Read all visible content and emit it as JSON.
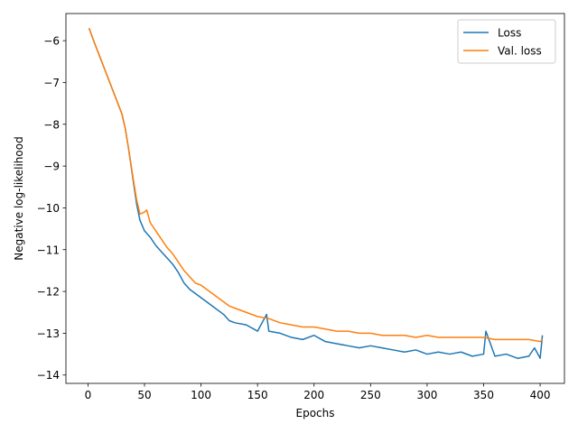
{
  "chart_data": {
    "type": "line",
    "title": "",
    "xlabel": "Epochs",
    "ylabel": "Negative log-likelihood",
    "xlim": [
      -19.5,
      421.5
    ],
    "ylim": [
      -14.2,
      -5.35
    ],
    "xticks": [
      0,
      50,
      100,
      150,
      200,
      250,
      300,
      350,
      400
    ],
    "xtick_labels": [
      "0",
      "50",
      "100",
      "150",
      "200",
      "250",
      "300",
      "350",
      "400"
    ],
    "yticks": [
      -14,
      -13,
      -12,
      -11,
      -10,
      -9,
      -8,
      -7,
      -6
    ],
    "ytick_labels": [
      "−14",
      "−13",
      "−12",
      "−11",
      "−10",
      "−9",
      "−8",
      "−7",
      "−6"
    ],
    "grid": false,
    "legend_position": "upper right",
    "series": [
      {
        "name": "Loss",
        "color": "#1f77b4",
        "x": [
          1,
          5,
          10,
          15,
          20,
          25,
          30,
          33,
          36,
          40,
          43,
          46,
          50,
          55,
          60,
          65,
          70,
          75,
          80,
          85,
          90,
          95,
          100,
          110,
          120,
          125,
          130,
          140,
          150,
          158,
          160,
          170,
          180,
          190,
          200,
          210,
          220,
          230,
          240,
          250,
          260,
          270,
          280,
          290,
          300,
          310,
          320,
          330,
          340,
          350,
          352,
          360,
          370,
          380,
          390,
          395,
          400,
          402
        ],
        "y": [
          -5.7,
          -6.0,
          -6.35,
          -6.7,
          -7.05,
          -7.4,
          -7.75,
          -8.1,
          -8.6,
          -9.35,
          -9.9,
          -10.3,
          -10.55,
          -10.7,
          -10.9,
          -11.05,
          -11.2,
          -11.35,
          -11.55,
          -11.8,
          -11.95,
          -12.05,
          -12.15,
          -12.35,
          -12.55,
          -12.7,
          -12.75,
          -12.8,
          -12.95,
          -12.55,
          -12.95,
          -13.0,
          -13.1,
          -13.15,
          -13.05,
          -13.2,
          -13.25,
          -13.3,
          -13.35,
          -13.3,
          -13.35,
          -13.4,
          -13.45,
          -13.4,
          -13.5,
          -13.45,
          -13.5,
          -13.45,
          -13.55,
          -13.5,
          -12.95,
          -13.55,
          -13.5,
          -13.6,
          -13.55,
          -13.35,
          -13.6,
          -13.05
        ]
      },
      {
        "name": "Val. loss",
        "color": "#ff7f0e",
        "x": [
          1,
          5,
          10,
          15,
          20,
          25,
          30,
          33,
          36,
          40,
          43,
          46,
          50,
          52,
          55,
          60,
          65,
          70,
          75,
          80,
          85,
          90,
          95,
          100,
          110,
          120,
          125,
          130,
          140,
          150,
          160,
          170,
          180,
          190,
          200,
          210,
          220,
          230,
          240,
          250,
          260,
          270,
          280,
          290,
          300,
          310,
          320,
          330,
          340,
          350,
          360,
          370,
          380,
          390,
          400,
          402
        ],
        "y": [
          -5.7,
          -6.0,
          -6.35,
          -6.7,
          -7.05,
          -7.4,
          -7.75,
          -8.1,
          -8.6,
          -9.3,
          -9.8,
          -10.15,
          -10.1,
          -10.05,
          -10.35,
          -10.55,
          -10.75,
          -10.95,
          -11.1,
          -11.3,
          -11.5,
          -11.65,
          -11.8,
          -11.85,
          -12.05,
          -12.25,
          -12.35,
          -12.4,
          -12.5,
          -12.6,
          -12.65,
          -12.75,
          -12.8,
          -12.85,
          -12.85,
          -12.9,
          -12.95,
          -12.95,
          -13.0,
          -13.0,
          -13.05,
          -13.05,
          -13.05,
          -13.1,
          -13.05,
          -13.1,
          -13.1,
          -13.1,
          -13.1,
          -13.1,
          -13.15,
          -13.15,
          -13.15,
          -13.15,
          -13.2,
          -13.15
        ]
      }
    ]
  }
}
